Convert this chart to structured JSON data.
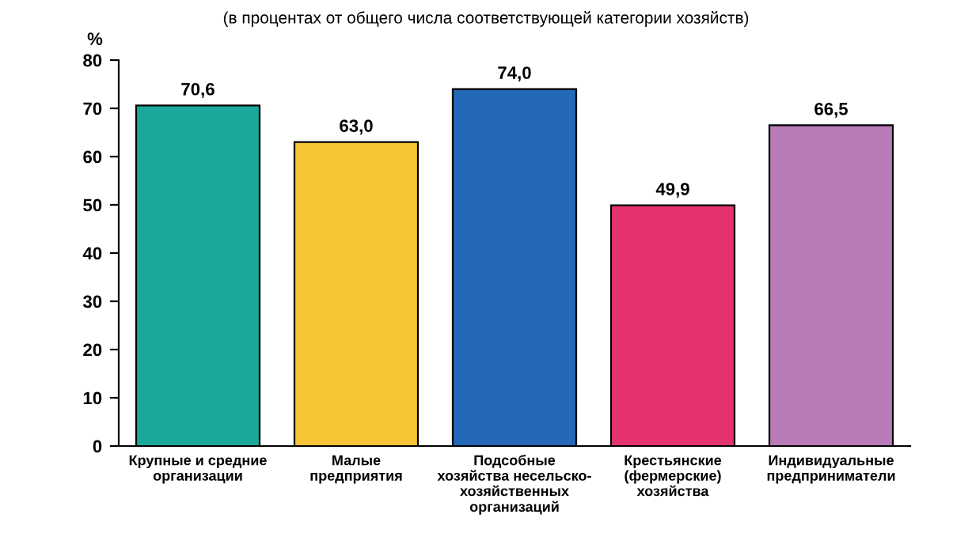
{
  "chart_data": {
    "type": "bar",
    "title": "(в процентах от общего числа соответствующей категории хозяйств)",
    "ylabel": "%",
    "categories": [
      "Крупные и средние\nорганизации",
      "Малые\nпредприятия",
      "Подсобные\nхозяйства несельско-\nхозяйственных\nорганизаций",
      "Крестьянские\n(фермерские)\nхозяйства",
      "Индивидуальные\nпредприниматели"
    ],
    "values": [
      70.6,
      63.0,
      74.0,
      49.9,
      66.5
    ],
    "value_labels": [
      "70,6",
      "63,0",
      "74,0",
      "49,9",
      "66,5"
    ],
    "colors": [
      "#1aa99b",
      "#f7c535",
      "#2468b8",
      "#e5336f",
      "#b97ab8"
    ],
    "ylim": [
      0,
      80
    ],
    "yticks": [
      0,
      10,
      20,
      30,
      40,
      50,
      60,
      70,
      80
    ],
    "grid": false,
    "legend": false
  }
}
